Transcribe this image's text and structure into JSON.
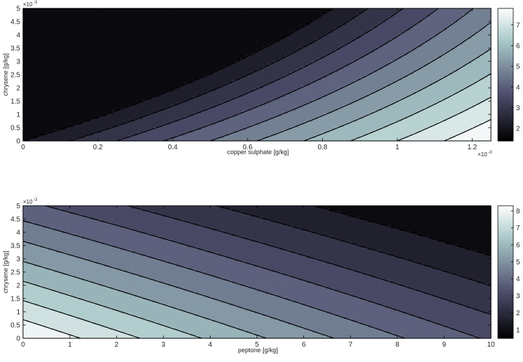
{
  "chart_data": [
    {
      "type": "contour",
      "xlabel": "copper sulphate [g/kg]",
      "ylabel": "chrysene [g/kg]",
      "x_exponent_label": "×10",
      "x_exponent_power": "-3",
      "y_exponent_label": "×10",
      "y_exponent_power": "-3",
      "x_ticks": [
        "0",
        "0.2",
        "0.4",
        "0.6",
        "0.8",
        "1",
        "1.2"
      ],
      "x_tick_values": [
        0,
        0.0002,
        0.0004,
        0.0006,
        0.0008,
        0.001,
        0.0012
      ],
      "y_ticks": [
        "0",
        "0.5",
        "1",
        "1.5",
        "2",
        "2.5",
        "3",
        "3.5",
        "4",
        "4.5",
        "5"
      ],
      "y_tick_values": [
        0,
        0.0005,
        0.001,
        0.0015,
        0.002,
        0.0025,
        0.003,
        0.0035,
        0.004,
        0.0045,
        0.005
      ],
      "xlim": [
        0,
        0.00125
      ],
      "ylim": [
        0,
        0.005
      ],
      "colorbar": {
        "range": [
          1.4,
          7.8
        ],
        "ticks": [
          "2",
          "3",
          "4",
          "5",
          "6",
          "7"
        ],
        "tick_values": [
          2,
          3,
          4,
          5,
          6,
          7
        ]
      },
      "contour_levels": [
        2.0,
        2.6,
        3.2,
        3.8,
        4.4,
        5.0,
        5.6,
        6.2,
        6.8,
        7.4
      ],
      "colormap": "bone"
    },
    {
      "type": "contour",
      "xlabel": "peptone [g/kg]",
      "ylabel": "chrysene [g/kg]",
      "y_exponent_label": "×10",
      "y_exponent_power": "-3",
      "x_ticks": [
        "0",
        "1",
        "2",
        "3",
        "4",
        "5",
        "6",
        "7",
        "8",
        "9",
        "10"
      ],
      "x_tick_values": [
        0,
        1,
        2,
        3,
        4,
        5,
        6,
        7,
        8,
        9,
        10
      ],
      "y_ticks": [
        "0",
        "0.5",
        "1",
        "1.5",
        "2",
        "2.5",
        "3",
        "3.5",
        "4",
        "4.5",
        "5"
      ],
      "y_tick_values": [
        0,
        0.0005,
        0.001,
        0.0015,
        0.002,
        0.0025,
        0.003,
        0.0035,
        0.004,
        0.0045,
        0.005
      ],
      "xlim": [
        0,
        10
      ],
      "ylim": [
        0,
        0.005
      ],
      "colorbar": {
        "range": [
          0.5,
          8.3
        ],
        "ticks": [
          "1",
          "2",
          "3",
          "4",
          "5",
          "6",
          "7",
          "8"
        ],
        "tick_values": [
          1,
          2,
          3,
          4,
          5,
          6,
          7,
          8
        ]
      },
      "contour_levels": [
        1.3,
        2.0,
        2.7,
        3.4,
        4.1,
        4.8,
        5.5,
        6.2,
        6.9,
        7.6
      ],
      "colormap": "bone"
    }
  ]
}
